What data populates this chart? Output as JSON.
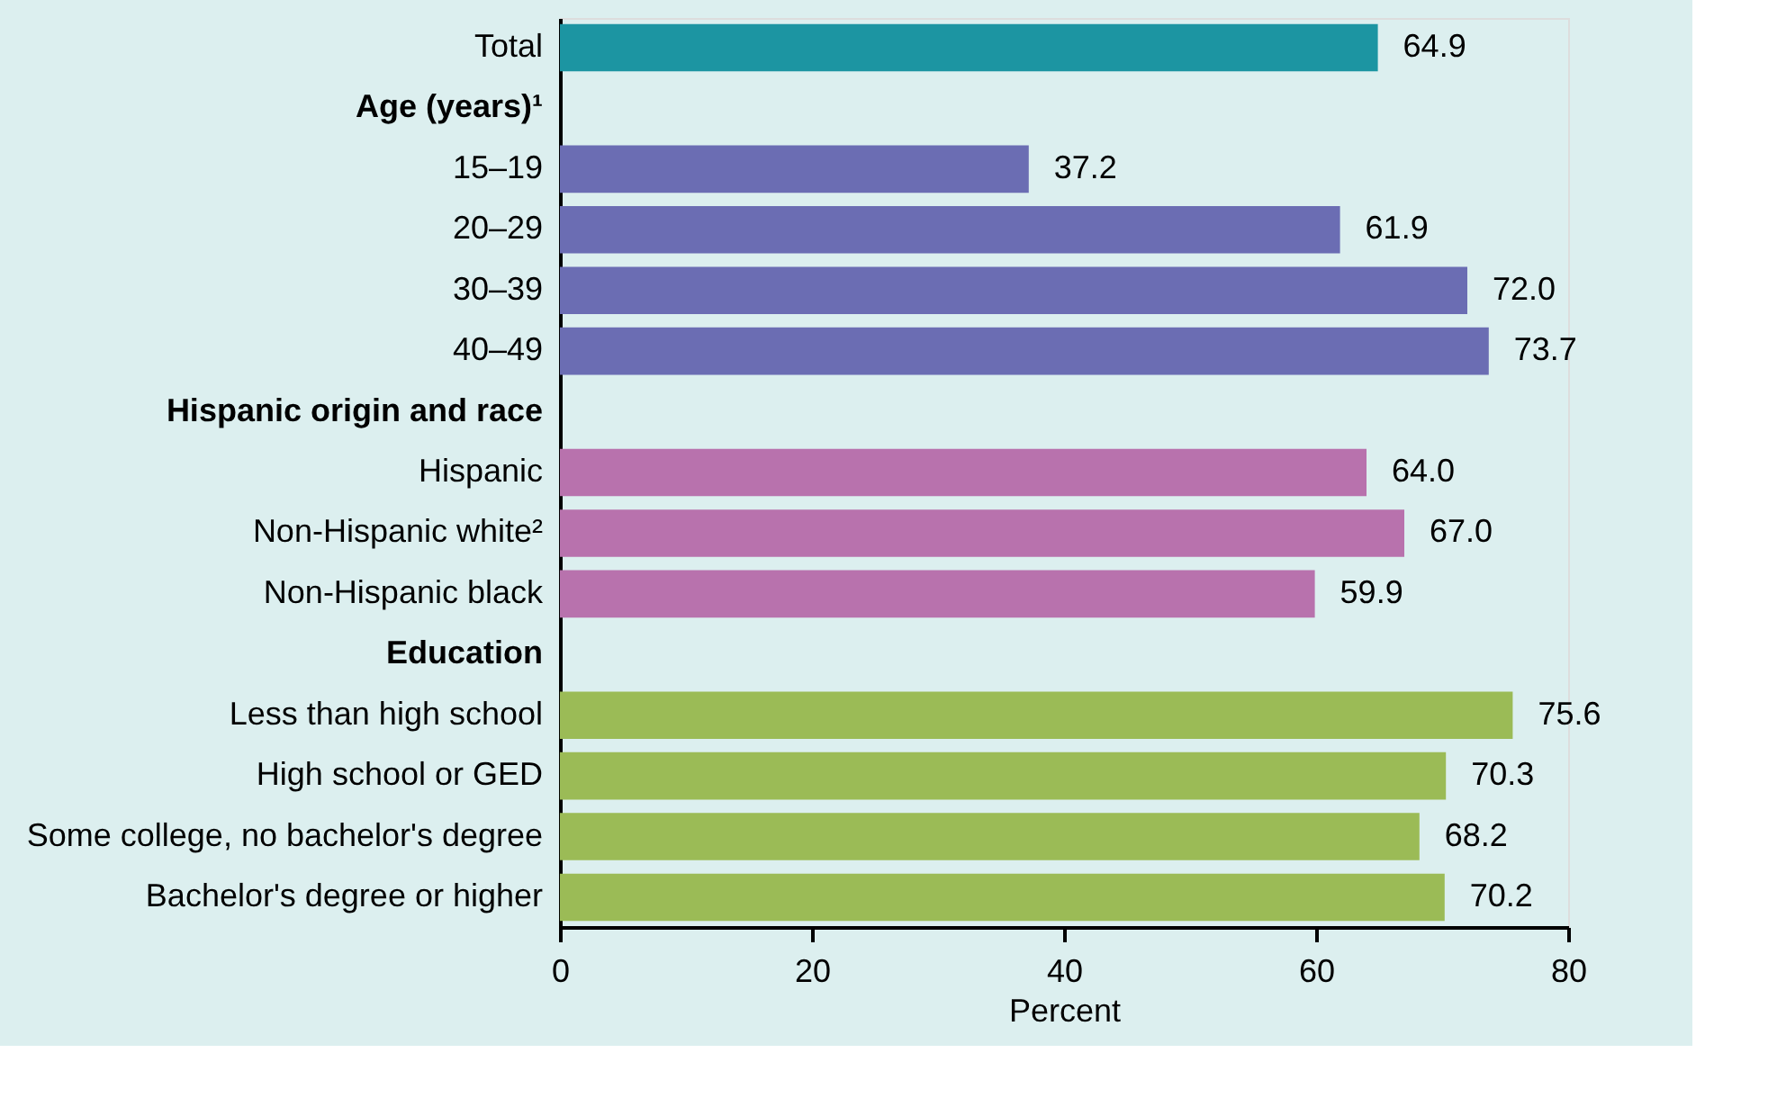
{
  "chart_data": {
    "type": "bar",
    "orientation": "horizontal",
    "xlabel": "Percent",
    "categories": [
      "Total",
      "Age (years)¹",
      "15–19",
      "20–29",
      "30–39",
      "40–49",
      "Hispanic origin and race",
      "Hispanic",
      "Non-Hispanic white²",
      "Non-Hispanic black",
      "Education",
      "Less than high school",
      "High school or GED",
      "Some college, no bachelor's degree",
      "Bachelor's degree or higher"
    ],
    "values": [
      64.9,
      null,
      37.2,
      61.9,
      72.0,
      73.7,
      null,
      64.0,
      67.0,
      59.9,
      null,
      75.6,
      70.3,
      68.2,
      70.2
    ],
    "value_labels": [
      "64.9",
      null,
      "37.2",
      "61.9",
      "72.0",
      "73.7",
      null,
      "64.0",
      "67.0",
      "59.9",
      null,
      "75.6",
      "70.3",
      "68.2",
      "70.2"
    ],
    "colors": [
      "#1c95a2",
      null,
      "#6b6db3",
      "#6b6db3",
      "#6b6db3",
      "#6b6db3",
      null,
      "#b872ad",
      "#b872ad",
      "#b872ad",
      null,
      "#9bbb56",
      "#9bbb56",
      "#9bbb56",
      "#9bbb56"
    ],
    "xlim": [
      0,
      80
    ],
    "xticks": [
      0,
      20,
      40,
      60,
      80
    ],
    "grid": false
  }
}
